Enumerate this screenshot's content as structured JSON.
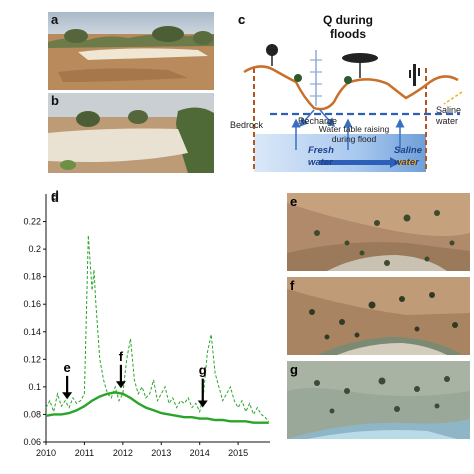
{
  "panels": {
    "a": "a",
    "b": "b",
    "c": "c",
    "d": "d",
    "e": "e",
    "f": "f",
    "g": "g"
  },
  "diagram": {
    "title_line1": "Q during",
    "title_line2": "floods",
    "bedrock": "Bedrock",
    "recharge": "Recharge",
    "saline_line1": "Saline",
    "saline_line2": "water",
    "watertable_line1": "Water table raising",
    "watertable_line2": "during flood",
    "fresh_line1": "Fresh",
    "fresh_line2": "water",
    "saline_bottom_line1": "Saline",
    "saline_bottom_line2": "water",
    "colors": {
      "land": "#c8702a",
      "water_table": "#2e5fb8",
      "fresh_water": "#8fb8e8",
      "arrow_blue": "#3a6fc0",
      "saline_arrow": "#f0b020"
    }
  },
  "chart_data": {
    "type": "line",
    "xlim": [
      2010,
      2015.83
    ],
    "ylim": [
      0.06,
      0.24
    ],
    "x_ticks": [
      2010,
      2011,
      2012,
      2013,
      2014,
      2015
    ],
    "y_ticks": [
      0.06,
      0.08,
      0.1,
      0.12,
      0.14,
      0.16,
      0.18,
      0.2,
      0.22
    ],
    "y_tick_labels": [
      "0.06",
      "0.08",
      "0.1",
      "0.12",
      "0.14",
      "0.16",
      "0.18",
      "0.2",
      "0.22"
    ],
    "series": [
      {
        "style": "dashed",
        "color": "#2aa52a",
        "x": [
          2010.0,
          2010.1,
          2010.2,
          2010.3,
          2010.4,
          2010.5,
          2010.6,
          2010.7,
          2010.8,
          2010.9,
          2011.0,
          2011.05,
          2011.1,
          2011.15,
          2011.2,
          2011.25,
          2011.3,
          2011.4,
          2011.5,
          2011.6,
          2011.7,
          2011.8,
          2011.9,
          2012.0,
          2012.1,
          2012.2,
          2012.3,
          2012.4,
          2012.5,
          2012.6,
          2012.7,
          2012.8,
          2012.9,
          2013.0,
          2013.1,
          2013.2,
          2013.3,
          2013.4,
          2013.5,
          2013.6,
          2013.7,
          2013.8,
          2013.9,
          2014.0,
          2014.1,
          2014.2,
          2014.3,
          2014.4,
          2014.5,
          2014.6,
          2014.7,
          2014.8,
          2014.9,
          2015.0,
          2015.1,
          2015.2,
          2015.3,
          2015.4,
          2015.5,
          2015.6,
          2015.7,
          2015.8
        ],
        "y": [
          0.085,
          0.09,
          0.082,
          0.095,
          0.086,
          0.09,
          0.085,
          0.092,
          0.088,
          0.09,
          0.095,
          0.15,
          0.21,
          0.19,
          0.17,
          0.185,
          0.16,
          0.12,
          0.105,
          0.095,
          0.092,
          0.1,
          0.09,
          0.095,
          0.12,
          0.135,
          0.105,
          0.095,
          0.1,
          0.092,
          0.095,
          0.105,
          0.09,
          0.095,
          0.1,
          0.088,
          0.092,
          0.085,
          0.09,
          0.088,
          0.092,
          0.085,
          0.088,
          0.082,
          0.095,
          0.125,
          0.138,
          0.11,
          0.1,
          0.09,
          0.095,
          0.1,
          0.09,
          0.085,
          0.09,
          0.082,
          0.088,
          0.08,
          0.085,
          0.08,
          0.078,
          0.075
        ]
      },
      {
        "style": "solid",
        "color": "#2aa52a",
        "x": [
          2010.0,
          2010.2,
          2010.4,
          2010.6,
          2010.8,
          2011.0,
          2011.2,
          2011.4,
          2011.6,
          2011.8,
          2012.0,
          2012.2,
          2012.4,
          2012.6,
          2012.8,
          2013.0,
          2013.2,
          2013.4,
          2013.6,
          2013.8,
          2014.0,
          2014.2,
          2014.4,
          2014.6,
          2014.8,
          2015.0,
          2015.2,
          2015.4,
          2015.6,
          2015.8
        ],
        "y": [
          0.079,
          0.08,
          0.08,
          0.081,
          0.083,
          0.086,
          0.09,
          0.093,
          0.095,
          0.096,
          0.095,
          0.092,
          0.088,
          0.085,
          0.083,
          0.081,
          0.08,
          0.079,
          0.078,
          0.078,
          0.077,
          0.077,
          0.076,
          0.076,
          0.075,
          0.075,
          0.075,
          0.074,
          0.074,
          0.074
        ]
      }
    ],
    "annotations": [
      {
        "label": "e",
        "x": 2010.55,
        "y_tip": 0.091,
        "y_tail": 0.108
      },
      {
        "label": "f",
        "x": 2011.95,
        "y_tip": 0.099,
        "y_tail": 0.116
      },
      {
        "label": "g",
        "x": 2014.08,
        "y_tip": 0.085,
        "y_tail": 0.106
      }
    ]
  }
}
